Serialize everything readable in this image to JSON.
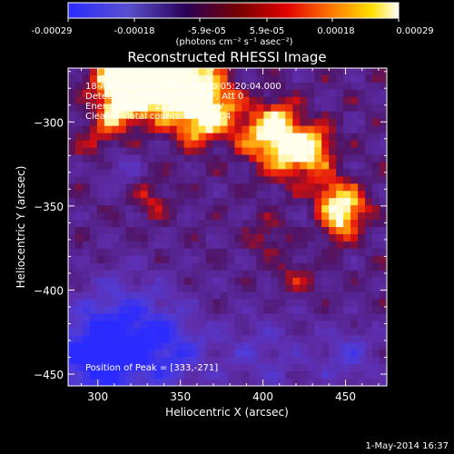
{
  "colorbar": {
    "ticks": [
      "-0.00029",
      "-0.00018",
      "-5.9e-05",
      "5.9e-05",
      "0.00018",
      "0.00029"
    ],
    "unit_label": "(photons cm⁻² s⁻¹ asec⁻²)",
    "range": [
      -0.00029,
      0.00029
    ],
    "colors": [
      "#2b2bff",
      "#5a4fd0",
      "#2a0055",
      "#7a0000",
      "#e00000",
      "#ff7a00",
      "#ffe000",
      "#ffffff"
    ]
  },
  "header": {
    "title": "Reconstructed RHESSI Image",
    "info_lines": [
      "18-Apr-2014 05:15:48.000 to 05:20:04.000",
      "Detectors: 3F 5F 6F 7F 8F 9F, Att 0",
      "Energy Range: 25.0 - 50.0 keV",
      "Clean     Total counts: 1.43E+04"
    ],
    "peak_text": "Position of Peak = [333,-271]"
  },
  "footer": {
    "timestamp": "1-May-2014 16:37"
  },
  "chart_data": {
    "type": "heatmap",
    "title": "Reconstructed RHESSI Image",
    "xlabel": "Heliocentric X (arcsec)",
    "ylabel": "Heliocentric Y (arcsec)",
    "xlim": [
      282,
      475
    ],
    "ylim": [
      -457,
      -268
    ],
    "xticks": [
      300,
      350,
      400,
      450
    ],
    "yticks": [
      -300,
      -350,
      -400,
      -450
    ],
    "peak": {
      "x": 333,
      "y": -271
    },
    "colorbar_range": [
      -0.00029,
      0.00029
    ],
    "sources": [
      {
        "x": 333,
        "y": -271,
        "intensity": 1.0,
        "width": 18
      },
      {
        "x": 318,
        "y": -272,
        "intensity": 0.95,
        "width": 14
      },
      {
        "x": 352,
        "y": -276,
        "intensity": 0.85,
        "width": 14
      },
      {
        "x": 372,
        "y": -292,
        "intensity": 0.75,
        "width": 12
      },
      {
        "x": 418,
        "y": -318,
        "intensity": 0.85,
        "width": 12
      },
      {
        "x": 400,
        "y": -308,
        "intensity": 0.7,
        "width": 11
      },
      {
        "x": 432,
        "y": -315,
        "intensity": 0.6,
        "width": 9
      },
      {
        "x": 452,
        "y": -351,
        "intensity": 0.8,
        "width": 9
      },
      {
        "x": 440,
        "y": -343,
        "intensity": 0.55,
        "width": 8
      },
      {
        "x": 445,
        "y": -363,
        "intensity": 0.55,
        "width": 7
      },
      {
        "x": 302,
        "y": -312,
        "intensity": 0.45,
        "width": 9
      },
      {
        "x": 312,
        "y": -292,
        "intensity": 0.55,
        "width": 9
      },
      {
        "x": 332,
        "y": -346,
        "intensity": 0.4,
        "width": 8
      },
      {
        "x": 402,
        "y": -368,
        "intensity": 0.35,
        "width": 8
      },
      {
        "x": 420,
        "y": -392,
        "intensity": 0.35,
        "width": 8
      },
      {
        "x": 358,
        "y": -303,
        "intensity": 0.5,
        "width": 9
      },
      {
        "x": 410,
        "y": -296,
        "intensity": 0.45,
        "width": 8
      },
      {
        "x": 315,
        "y": -423,
        "intensity": -0.7,
        "width": 22
      },
      {
        "x": 298,
        "y": -442,
        "intensity": -0.9,
        "width": 18
      },
      {
        "x": 345,
        "y": -437,
        "intensity": -0.6,
        "width": 18
      },
      {
        "x": 400,
        "y": -440,
        "intensity": -0.4,
        "width": 20
      },
      {
        "x": 452,
        "y": -440,
        "intensity": -0.5,
        "width": 14
      },
      {
        "x": 312,
        "y": -325,
        "intensity": -0.4,
        "width": 9
      }
    ]
  }
}
